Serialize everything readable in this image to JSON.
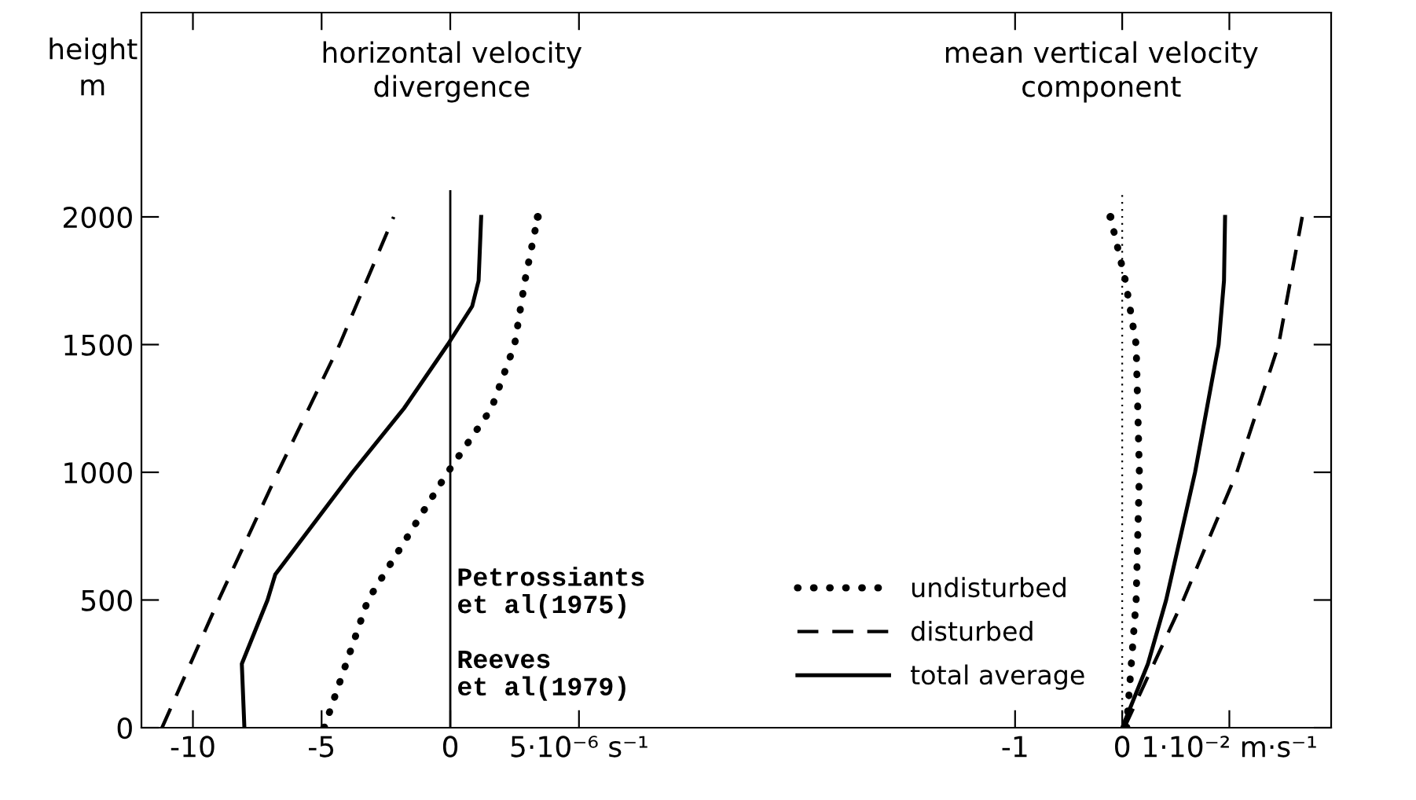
{
  "chart_data": [
    {
      "type": "line",
      "title": "horizontal velocity\ndivergence",
      "ylabel": "height\nm",
      "series": [
        {
          "name": "undisturbed",
          "color": "#000000",
          "line_style": "dotted",
          "values": [
            0,
            500,
            1000,
            1250,
            1500,
            1750,
            2000
          ],
          "x": [
            -4.9,
            -3.2,
            -0.1,
            1.6,
            2.5,
            2.9,
            3.4
          ]
        },
        {
          "name": "disturbed",
          "color": "#000000",
          "line_style": "dashed",
          "values": [
            0,
            500,
            1000,
            1500,
            2000
          ],
          "x": [
            -11.2,
            -9.0,
            -6.7,
            -4.3,
            -2.2
          ]
        },
        {
          "name": "total average",
          "color": "#000000",
          "line_style": "solid",
          "values": [
            0,
            250,
            500,
            600,
            1000,
            1250,
            1500,
            1650,
            1750,
            2000
          ],
          "x": [
            -8.0,
            -8.1,
            -7.1,
            -6.8,
            -3.8,
            -1.8,
            -0.1,
            0.85,
            1.1,
            1.2
          ]
        }
      ],
      "xlim": [
        -12,
        16.7
      ],
      "xticks": [
        -10,
        -5,
        0,
        {
          "value": 5,
          "label": "5·10⁻⁶ s⁻¹"
        }
      ],
      "ylim": [
        0,
        2800
      ],
      "yticks": [
        0,
        500,
        1000,
        1500,
        2000
      ],
      "ref_lines": [
        {
          "axis": "x",
          "value": 0,
          "color": "#000000",
          "line_style": "solid"
        }
      ],
      "annotations": [
        "Petrossiants\net al(1975)",
        "Reeves\net al(1979)"
      ],
      "legend": "bottom right",
      "grid": false
    },
    {
      "type": "line",
      "title": "mean vertical velocity\ncomponent",
      "series": [
        {
          "color": "#000000",
          "line_style": "dotted",
          "values": [
            0,
            500,
            1000,
            1500,
            1750,
            2000
          ],
          "x": [
            0.04,
            0.13,
            0.16,
            0.13,
            0.03,
            -0.11
          ]
        },
        {
          "color": "#000000",
          "line_style": "dashed",
          "values": [
            0,
            500,
            1000,
            1500,
            2000
          ],
          "x": [
            0.02,
            0.57,
            1.07,
            1.46,
            1.68
          ]
        },
        {
          "color": "#000000",
          "line_style": "solid",
          "values": [
            0,
            250,
            500,
            1000,
            1500,
            1750,
            2000
          ],
          "x": [
            0,
            0.24,
            0.41,
            0.68,
            0.9,
            0.95,
            0.96
          ]
        }
      ],
      "xlim": [
        -2.26,
        1.95
      ],
      "xticks": [
        -1,
        0,
        {
          "value": 1,
          "label": "1·10⁻² m·s⁻¹"
        }
      ],
      "ylim": [
        0,
        2800
      ],
      "yticks": [
        0,
        500,
        1000,
        1500,
        2000
      ],
      "ref_lines": [
        {
          "axis": "x",
          "value": 0,
          "color": "#000000",
          "line_style": "dotted"
        }
      ],
      "tick_labels": "x",
      "grid": false
    }
  ]
}
